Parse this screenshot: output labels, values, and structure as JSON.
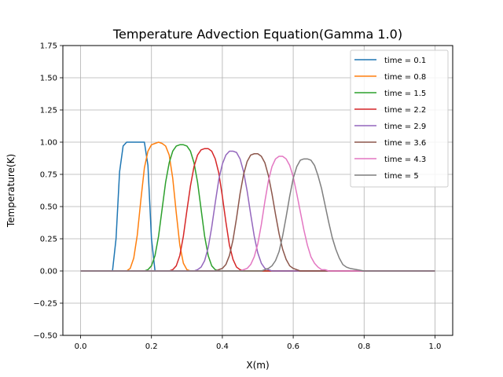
{
  "chart_data": {
    "type": "line",
    "title": "Temperature Advection Equation(Gamma 1.0)",
    "xlabel": "X(m)",
    "ylabel": "Temperature(K)",
    "xlim": [
      -0.05,
      1.05
    ],
    "ylim": [
      -0.5,
      1.75
    ],
    "xticks": [
      0.0,
      0.2,
      0.4,
      0.6,
      0.8,
      1.0
    ],
    "xtick_labels": [
      "0.0",
      "0.2",
      "0.4",
      "0.6",
      "0.8",
      "1.0"
    ],
    "yticks": [
      -0.5,
      -0.25,
      0.0,
      0.25,
      0.5,
      0.75,
      1.0,
      1.25,
      1.5,
      1.75
    ],
    "ytick_labels": [
      "−0.50",
      "−0.25",
      "0.00",
      "0.25",
      "0.50",
      "0.75",
      "1.00",
      "1.25",
      "1.50",
      "1.75"
    ],
    "grid": true,
    "legend_position": "top-right",
    "x_range": [
      0.0,
      1.0
    ],
    "series": [
      {
        "name": "time = 0.1",
        "color": "#1f77b4",
        "x": [
          0.0,
          0.09,
          0.1,
          0.11,
          0.12,
          0.13,
          0.14,
          0.17,
          0.18,
          0.19,
          0.2,
          0.21,
          1.0
        ],
        "y": [
          0.0,
          0.0,
          0.25,
          0.77,
          0.97,
          1.0,
          1.0,
          1.0,
          1.0,
          0.82,
          0.25,
          0.0,
          0.0
        ]
      },
      {
        "name": "time = 0.8",
        "color": "#ff7f0e",
        "x": [
          0.0,
          0.13,
          0.14,
          0.15,
          0.16,
          0.17,
          0.18,
          0.19,
          0.2,
          0.21,
          0.22,
          0.23,
          0.24,
          0.25,
          0.26,
          0.27,
          0.28,
          0.29,
          0.3,
          0.31,
          1.0
        ],
        "y": [
          0.0,
          0.0,
          0.02,
          0.1,
          0.28,
          0.55,
          0.8,
          0.93,
          0.98,
          0.99,
          1.0,
          0.99,
          0.97,
          0.9,
          0.72,
          0.45,
          0.2,
          0.06,
          0.01,
          0.0,
          0.0
        ]
      },
      {
        "name": "time = 1.5",
        "color": "#2ca02c",
        "x": [
          0.0,
          0.18,
          0.19,
          0.2,
          0.21,
          0.22,
          0.23,
          0.24,
          0.25,
          0.26,
          0.27,
          0.28,
          0.29,
          0.3,
          0.31,
          0.32,
          0.33,
          0.34,
          0.35,
          0.36,
          0.37,
          0.38,
          0.39,
          1.0
        ],
        "y": [
          0.0,
          0.0,
          0.01,
          0.04,
          0.12,
          0.27,
          0.48,
          0.69,
          0.84,
          0.93,
          0.97,
          0.98,
          0.98,
          0.97,
          0.93,
          0.84,
          0.69,
          0.48,
          0.27,
          0.12,
          0.04,
          0.01,
          0.0,
          0.0
        ]
      },
      {
        "name": "time = 2.2",
        "color": "#d62728",
        "x": [
          0.0,
          0.25,
          0.26,
          0.27,
          0.28,
          0.29,
          0.3,
          0.31,
          0.32,
          0.33,
          0.34,
          0.35,
          0.36,
          0.37,
          0.38,
          0.39,
          0.4,
          0.41,
          0.42,
          0.43,
          0.44,
          0.45,
          0.46,
          1.0
        ],
        "y": [
          0.0,
          0.0,
          0.01,
          0.04,
          0.12,
          0.27,
          0.47,
          0.66,
          0.81,
          0.9,
          0.94,
          0.95,
          0.95,
          0.93,
          0.87,
          0.76,
          0.58,
          0.38,
          0.2,
          0.09,
          0.03,
          0.01,
          0.0,
          0.0
        ]
      },
      {
        "name": "time = 2.9",
        "color": "#9467bd",
        "x": [
          0.0,
          0.32,
          0.33,
          0.34,
          0.35,
          0.36,
          0.37,
          0.38,
          0.39,
          0.4,
          0.41,
          0.42,
          0.43,
          0.44,
          0.45,
          0.46,
          0.47,
          0.48,
          0.49,
          0.5,
          0.51,
          0.52,
          0.53,
          0.54,
          1.0
        ],
        "y": [
          0.0,
          0.0,
          0.01,
          0.03,
          0.08,
          0.18,
          0.34,
          0.53,
          0.71,
          0.83,
          0.9,
          0.93,
          0.93,
          0.92,
          0.87,
          0.77,
          0.62,
          0.44,
          0.27,
          0.14,
          0.06,
          0.02,
          0.01,
          0.0,
          0.0
        ]
      },
      {
        "name": "time = 3.6",
        "color": "#8c564b",
        "x": [
          0.0,
          0.38,
          0.39,
          0.4,
          0.41,
          0.42,
          0.43,
          0.44,
          0.45,
          0.46,
          0.47,
          0.48,
          0.49,
          0.5,
          0.51,
          0.52,
          0.53,
          0.54,
          0.55,
          0.56,
          0.57,
          0.58,
          0.59,
          0.6,
          0.61,
          0.62,
          1.0
        ],
        "y": [
          0.0,
          0.0,
          0.01,
          0.02,
          0.05,
          0.12,
          0.24,
          0.41,
          0.6,
          0.75,
          0.85,
          0.9,
          0.91,
          0.91,
          0.89,
          0.84,
          0.74,
          0.6,
          0.44,
          0.29,
          0.17,
          0.09,
          0.04,
          0.02,
          0.01,
          0.0,
          0.0
        ]
      },
      {
        "name": "time = 4.3",
        "color": "#e377c2",
        "x": [
          0.0,
          0.45,
          0.46,
          0.47,
          0.48,
          0.49,
          0.5,
          0.51,
          0.52,
          0.53,
          0.54,
          0.55,
          0.56,
          0.57,
          0.58,
          0.59,
          0.6,
          0.61,
          0.62,
          0.63,
          0.64,
          0.65,
          0.66,
          0.67,
          0.68,
          0.69,
          0.7,
          1.0
        ],
        "y": [
          0.0,
          0.0,
          0.01,
          0.02,
          0.05,
          0.11,
          0.21,
          0.36,
          0.54,
          0.7,
          0.81,
          0.87,
          0.89,
          0.89,
          0.87,
          0.82,
          0.73,
          0.6,
          0.46,
          0.32,
          0.2,
          0.11,
          0.06,
          0.03,
          0.01,
          0.01,
          0.0,
          0.0
        ]
      },
      {
        "name": "time = 5",
        "color": "#7f7f7f",
        "x": [
          0.0,
          0.51,
          0.52,
          0.53,
          0.54,
          0.55,
          0.56,
          0.57,
          0.58,
          0.59,
          0.6,
          0.61,
          0.62,
          0.63,
          0.64,
          0.65,
          0.66,
          0.67,
          0.68,
          0.69,
          0.7,
          0.71,
          0.72,
          0.73,
          0.74,
          0.75,
          0.76,
          0.78,
          0.8,
          1.0
        ],
        "y": [
          0.0,
          0.0,
          0.01,
          0.02,
          0.04,
          0.08,
          0.15,
          0.27,
          0.42,
          0.58,
          0.72,
          0.81,
          0.86,
          0.87,
          0.87,
          0.86,
          0.82,
          0.74,
          0.64,
          0.51,
          0.38,
          0.26,
          0.17,
          0.1,
          0.05,
          0.03,
          0.02,
          0.01,
          0.0,
          0.0
        ]
      }
    ]
  }
}
